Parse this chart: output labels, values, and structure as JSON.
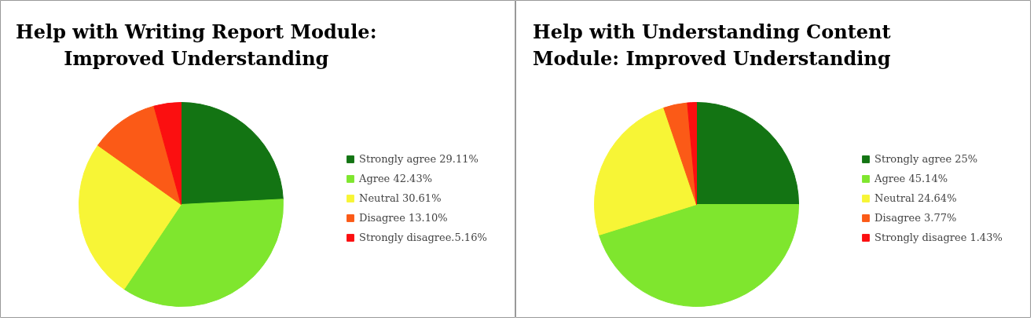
{
  "chart_data": [
    {
      "type": "pie",
      "title": "Help with Writing Report Module:\nImproved Understanding",
      "categories": [
        "Strongly agree 29.11%",
        "Agree 42.43%",
        "Neutral 30.61%",
        "Disagree 13.10%",
        "Strongly disagree.5.16%"
      ],
      "values": [
        29.11,
        42.43,
        30.61,
        13.1,
        5.16
      ],
      "colors": [
        "#137413",
        "#7fe62e",
        "#f7f536",
        "#fb5a17",
        "#fb0f10"
      ],
      "legend": "right"
    },
    {
      "type": "pie",
      "title": "Help with Understanding Content\nModule: Improved Understanding",
      "categories": [
        "Strongly agree 25%",
        "Agree 45.14%",
        "Neutral 24.64%",
        "Disagree 3.77%",
        "Strongly disagree 1.43%"
      ],
      "values": [
        25,
        45.14,
        24.64,
        3.77,
        1.43
      ],
      "colors": [
        "#137413",
        "#7fe62e",
        "#f7f536",
        "#fb5a17",
        "#fb0f10"
      ],
      "legend": "right"
    }
  ]
}
